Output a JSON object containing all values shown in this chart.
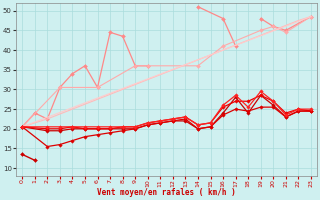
{
  "background_color": "#cff0f0",
  "grid_color": "#aadddd",
  "xlabel": "Vent moyen/en rafales ( km/h )",
  "xlim": [
    -0.5,
    23.5
  ],
  "ylim": [
    8,
    52
  ],
  "yticks": [
    10,
    15,
    20,
    25,
    30,
    35,
    40,
    45,
    50
  ],
  "xticks": [
    0,
    1,
    2,
    3,
    4,
    5,
    6,
    7,
    8,
    9,
    10,
    11,
    12,
    13,
    14,
    15,
    16,
    17,
    18,
    19,
    20,
    21,
    22,
    23
  ],
  "lines": [
    {
      "segments": [
        {
          "x": [
            0,
            1,
            2,
            3,
            4,
            5,
            6,
            7,
            8,
            9,
            10
          ],
          "y": [
            20.5,
            24.0,
            22.5,
            30.5,
            34.0,
            36.0,
            30.5,
            44.5,
            43.5,
            36.0,
            36.0
          ]
        },
        {
          "x": [
            14,
            16,
            17
          ],
          "y": [
            51.0,
            48.0,
            41.0
          ]
        },
        {
          "x": [
            19,
            20,
            21,
            23
          ],
          "y": [
            48.0,
            46.0,
            45.0,
            48.5
          ]
        }
      ],
      "color": "#ff8888",
      "marker": "D",
      "markersize": 2.0,
      "linewidth": 0.9
    },
    {
      "segments": [
        {
          "x": [
            0,
            3,
            6,
            9,
            10,
            14,
            16,
            19,
            20,
            21,
            23
          ],
          "y": [
            20.5,
            30.5,
            30.5,
            36.0,
            36.0,
            36.0,
            41.0,
            45.0,
            46.0,
            44.5,
            48.5
          ]
        }
      ],
      "color": "#ffaaaa",
      "marker": "D",
      "markersize": 2.0,
      "linewidth": 0.8
    },
    {
      "segments": [
        {
          "x": [
            0,
            2,
            4,
            6,
            8,
            10,
            12,
            14,
            16,
            18,
            20,
            22,
            23
          ],
          "y": [
            20.5,
            22.5,
            25.0,
            27.5,
            30.0,
            32.5,
            35.0,
            37.5,
            40.0,
            42.5,
            45.0,
            47.5,
            48.5
          ]
        }
      ],
      "color": "#ffbbbb",
      "marker": null,
      "markersize": 0,
      "linewidth": 0.8
    },
    {
      "segments": [
        {
          "x": [
            0,
            23
          ],
          "y": [
            20.5,
            48.5
          ]
        }
      ],
      "color": "#ffcccc",
      "marker": null,
      "markersize": 0,
      "linewidth": 0.8
    },
    {
      "segments": [
        {
          "x": [
            0,
            1
          ],
          "y": [
            13.5,
            12.0
          ]
        }
      ],
      "color": "#cc0000",
      "marker": "D",
      "markersize": 2.0,
      "linewidth": 1.0
    },
    {
      "segments": [
        {
          "x": [
            0,
            2,
            3,
            4,
            5,
            6,
            7,
            8,
            9,
            10,
            11,
            12,
            13,
            14,
            15,
            16,
            17,
            18,
            19,
            20,
            21,
            22,
            23
          ],
          "y": [
            20.5,
            19.5,
            19.5,
            20.0,
            20.0,
            20.0,
            20.0,
            20.0,
            20.0,
            21.0,
            21.5,
            22.0,
            22.0,
            20.0,
            20.5,
            24.0,
            28.0,
            24.0,
            28.5,
            26.0,
            23.0,
            24.5,
            24.5
          ]
        }
      ],
      "color": "#cc0000",
      "marker": "D",
      "markersize": 1.8,
      "linewidth": 0.9
    },
    {
      "segments": [
        {
          "x": [
            0,
            2,
            3,
            4,
            5,
            6,
            7,
            8,
            9,
            10,
            11,
            12,
            13,
            14,
            15,
            16,
            17,
            18,
            19,
            20,
            21,
            22,
            23
          ],
          "y": [
            20.5,
            20.0,
            20.0,
            20.5,
            20.0,
            20.0,
            20.0,
            20.5,
            20.5,
            21.5,
            22.0,
            22.5,
            23.0,
            21.0,
            21.5,
            25.5,
            27.0,
            27.0,
            28.5,
            27.0,
            24.0,
            25.0,
            24.5
          ]
        }
      ],
      "color": "#ee0000",
      "marker": "D",
      "markersize": 1.8,
      "linewidth": 0.9
    },
    {
      "segments": [
        {
          "x": [
            0,
            2,
            3,
            4,
            5,
            6,
            7,
            8,
            9,
            10,
            11,
            12,
            13,
            14,
            15,
            16,
            17,
            18,
            19,
            20,
            21,
            22,
            23
          ],
          "y": [
            20.5,
            15.5,
            16.0,
            17.0,
            18.0,
            18.5,
            19.0,
            19.5,
            20.0,
            21.0,
            21.5,
            22.0,
            22.5,
            20.0,
            20.5,
            23.5,
            25.0,
            24.5,
            25.5,
            25.5,
            23.0,
            24.5,
            24.5
          ]
        }
      ],
      "color": "#dd0000",
      "marker": "D",
      "markersize": 1.8,
      "linewidth": 0.9
    },
    {
      "segments": [
        {
          "x": [
            0,
            2,
            3,
            4,
            5,
            6,
            7,
            8,
            9,
            10,
            11,
            12,
            13,
            14,
            15,
            16,
            17,
            18,
            19,
            20,
            21,
            22,
            23
          ],
          "y": [
            20.5,
            20.5,
            20.5,
            20.5,
            20.5,
            20.5,
            20.5,
            20.5,
            20.5,
            21.5,
            22.0,
            22.5,
            23.0,
            21.0,
            21.5,
            26.0,
            28.5,
            25.5,
            29.5,
            27.0,
            23.5,
            25.0,
            25.0
          ]
        }
      ],
      "color": "#ff2222",
      "marker": "D",
      "markersize": 1.8,
      "linewidth": 0.9
    }
  ]
}
